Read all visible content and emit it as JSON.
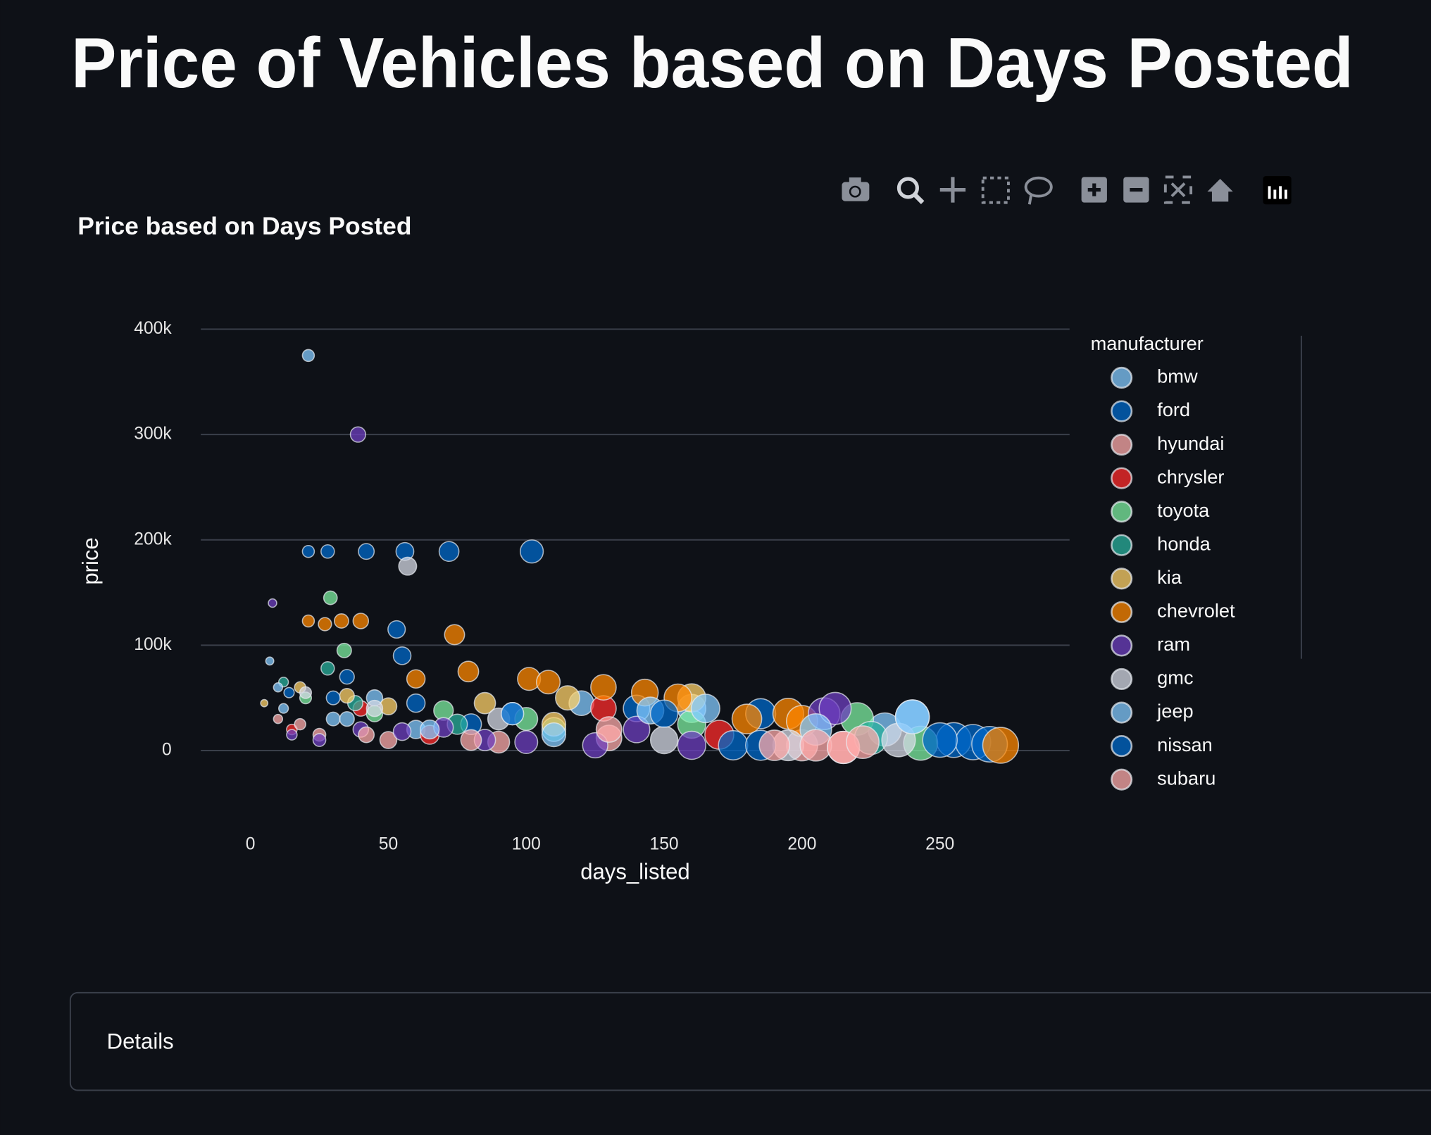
{
  "page_title": "Price of Vehicles based on Days Posted",
  "expander": {
    "label": "Details"
  },
  "chart_data": {
    "type": "scatter",
    "title": "Price based on Days Posted",
    "x_label": "days_listed",
    "y_label": "price",
    "legend_title": "manufacturer",
    "legend": "outside-right",
    "grid": true,
    "xlim": [
      -18,
      297
    ],
    "ylim": [
      -67000,
      418000
    ],
    "xticks": [
      0,
      50,
      100,
      150,
      200,
      250
    ],
    "yticks": [
      0,
      {
        "value": 100000,
        "label": "100k"
      },
      {
        "value": 200000,
        "label": "200k"
      },
      {
        "value": 300000,
        "label": "300k"
      },
      {
        "value": 400000,
        "label": "400k"
      }
    ],
    "series": [
      {
        "name": "bmw",
        "color": "#83c9ff",
        "x": [
          21,
          7,
          12,
          30,
          45,
          60,
          95,
          120,
          160,
          230,
          240
        ],
        "values": [
          375000,
          85000,
          40000,
          30000,
          50000,
          20000,
          35000,
          45000,
          40000,
          20000,
          32000
        ]
      },
      {
        "name": "ford",
        "color": "#0068c9",
        "x": [
          21,
          28,
          42,
          56,
          72,
          102,
          53,
          55,
          35,
          80,
          140,
          185,
          255,
          262,
          268
        ],
        "values": [
          189000,
          189000,
          189000,
          189000,
          189000,
          189000,
          115000,
          90000,
          70000,
          25000,
          40000,
          35000,
          10000,
          8000,
          6000
        ]
      },
      {
        "name": "hyundai",
        "color": "#ffabab",
        "x": [
          10,
          25,
          50,
          90,
          130,
          200,
          215
        ],
        "values": [
          30000,
          15000,
          10000,
          8000,
          12000,
          5000,
          3000
        ]
      },
      {
        "name": "chrysler",
        "color": "#ff2b2b",
        "x": [
          15,
          40,
          65,
          128,
          170
        ],
        "values": [
          20000,
          40000,
          15000,
          40000,
          15000
        ]
      },
      {
        "name": "toyota",
        "color": "#7defa1",
        "x": [
          29,
          34,
          20,
          45,
          70,
          100,
          160,
          220,
          243
        ],
        "values": [
          145000,
          95000,
          50000,
          35000,
          38000,
          30000,
          25000,
          30000,
          7000
        ]
      },
      {
        "name": "honda",
        "color": "#29b09d",
        "x": [
          12,
          28,
          38,
          75,
          110,
          225
        ],
        "values": [
          65000,
          78000,
          45000,
          25000,
          20000,
          12000
        ]
      },
      {
        "name": "kia",
        "color": "#ffd16a",
        "x": [
          5,
          18,
          35,
          50,
          85,
          115,
          160,
          110
        ],
        "values": [
          45000,
          60000,
          52000,
          42000,
          45000,
          50000,
          50000,
          25000
        ]
      },
      {
        "name": "chevrolet",
        "color": "#ff8700",
        "x": [
          21,
          27,
          33,
          40,
          74,
          60,
          79,
          101,
          108,
          128,
          143,
          155,
          180,
          195,
          272,
          200
        ],
        "values": [
          123000,
          120000,
          123000,
          123000,
          110000,
          68000,
          75000,
          68000,
          65000,
          60000,
          55000,
          50000,
          30000,
          35000,
          5000,
          28000
        ]
      },
      {
        "name": "ram",
        "color": "#6d3fc0",
        "x": [
          39,
          8,
          15,
          25,
          40,
          55,
          70,
          85,
          100,
          125,
          140,
          160,
          208,
          212
        ],
        "values": [
          300000,
          140000,
          15000,
          10000,
          20000,
          18000,
          22000,
          10000,
          8000,
          5000,
          20000,
          5000,
          35000,
          40000
        ]
      },
      {
        "name": "gmc",
        "color": "#d5dae5",
        "x": [
          57,
          20,
          45,
          90,
          150,
          195,
          235
        ],
        "values": [
          175000,
          55000,
          40000,
          30000,
          10000,
          5000,
          10000
        ]
      },
      {
        "name": "jeep",
        "color": "#83c9ff",
        "x": [
          10,
          35,
          65,
          110,
          145,
          165,
          205,
          240
        ],
        "values": [
          60000,
          30000,
          20000,
          15000,
          38000,
          40000,
          20000,
          32000
        ]
      },
      {
        "name": "nissan",
        "color": "#0068c9",
        "x": [
          14,
          30,
          60,
          95,
          150,
          175,
          185,
          250
        ],
        "values": [
          55000,
          50000,
          45000,
          35000,
          35000,
          5000,
          5000,
          10000
        ]
      },
      {
        "name": "subaru",
        "color": "#ffabab",
        "x": [
          18,
          42,
          80,
          130,
          190,
          205,
          215,
          222
        ],
        "values": [
          25000,
          15000,
          10000,
          20000,
          5000,
          5000,
          3000,
          8000
        ]
      }
    ]
  }
}
